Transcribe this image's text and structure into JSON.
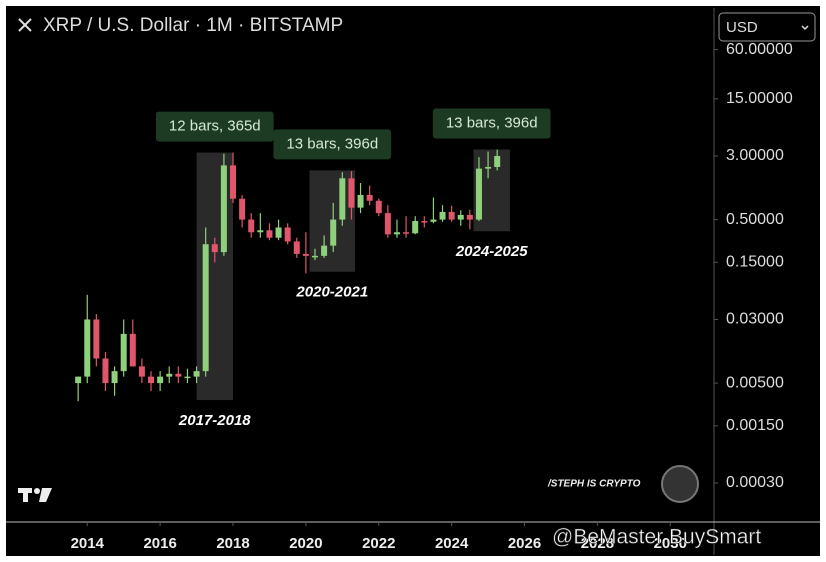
{
  "header": {
    "title": "XRP / U.S. Dollar · 1M · BITSTAMP",
    "currency": "USD"
  },
  "watermarks": {
    "author": "/STEPH IS CRYPTO",
    "overlay": "@BeMaster BuySmart"
  },
  "chart_data": {
    "type": "candlestick",
    "log_scale": true,
    "up_color": "#8fd07c",
    "down_color": "#e0566a",
    "xlim": [
      2011.88,
      2031.2
    ],
    "xticks": [
      2014,
      2016,
      2018,
      2020,
      2022,
      2024,
      2026,
      2028,
      2030
    ],
    "ylim": [
      0.0001,
      183
    ],
    "yticks": [
      {
        "value": 60,
        "label": "60.00000"
      },
      {
        "value": 15,
        "label": "15.00000"
      },
      {
        "value": 3,
        "label": "3.00000"
      },
      {
        "value": 0.5,
        "label": "0.50000"
      },
      {
        "value": 0.15,
        "label": "0.15000"
      },
      {
        "value": 0.03,
        "label": "0.03000"
      },
      {
        "value": 0.005,
        "label": "0.00500"
      },
      {
        "value": 0.0015,
        "label": "0.00150"
      },
      {
        "value": 0.0003,
        "label": "0.00030"
      }
    ],
    "candles": {
      "x": [
        2013.75,
        2014.0,
        2014.25,
        2014.5,
        2014.75,
        2015.0,
        2015.25,
        2015.5,
        2015.75,
        2016.0,
        2016.25,
        2016.5,
        2016.75,
        2017.0,
        2017.25,
        2017.5,
        2017.75,
        2018.0,
        2018.25,
        2018.5,
        2018.75,
        2019.0,
        2019.25,
        2019.5,
        2019.75,
        2020.0,
        2020.25,
        2020.5,
        2020.75,
        2021.0,
        2021.25,
        2021.5,
        2021.75,
        2022.0,
        2022.25,
        2022.5,
        2022.75,
        2023.0,
        2023.25,
        2023.5,
        2023.75,
        2024.0,
        2024.25,
        2024.5,
        2024.75,
        2025.0,
        2025.25
      ],
      "open": [
        0.005,
        0.006,
        0.03,
        0.01,
        0.005,
        0.007,
        0.02,
        0.008,
        0.006,
        0.005,
        0.006,
        0.0065,
        0.006,
        0.006,
        0.007,
        0.25,
        0.2,
        2.3,
        0.9,
        0.5,
        0.35,
        0.37,
        0.3,
        0.4,
        0.27,
        0.19,
        0.18,
        0.18,
        0.24,
        0.5,
        1.6,
        0.7,
        1.0,
        0.85,
        0.6,
        0.33,
        0.35,
        0.34,
        0.48,
        0.47,
        0.5,
        0.62,
        0.5,
        0.57,
        0.5,
        2.1,
        2.2
      ],
      "high": [
        0.006,
        0.06,
        0.035,
        0.012,
        0.008,
        0.03,
        0.03,
        0.01,
        0.007,
        0.007,
        0.008,
        0.008,
        0.0075,
        0.008,
        0.4,
        0.3,
        3.2,
        3.3,
        1.0,
        0.6,
        0.6,
        0.45,
        0.5,
        0.45,
        0.3,
        0.35,
        0.22,
        0.32,
        0.8,
        1.9,
        1.96,
        1.4,
        1.3,
        0.9,
        0.75,
        0.5,
        0.55,
        0.55,
        0.55,
        0.93,
        0.75,
        0.74,
        0.65,
        0.66,
        2.9,
        3.4,
        3.6
      ],
      "low": [
        0.003,
        0.005,
        0.008,
        0.004,
        0.0035,
        0.006,
        0.008,
        0.005,
        0.004,
        0.004,
        0.005,
        0.005,
        0.005,
        0.005,
        0.006,
        0.15,
        0.18,
        0.8,
        0.4,
        0.3,
        0.3,
        0.28,
        0.28,
        0.25,
        0.17,
        0.11,
        0.16,
        0.17,
        0.2,
        0.42,
        0.5,
        0.6,
        0.75,
        0.55,
        0.3,
        0.3,
        0.3,
        0.33,
        0.4,
        0.45,
        0.47,
        0.47,
        0.42,
        0.38,
        0.48,
        1.6,
        2.0
      ],
      "close": [
        0.006,
        0.03,
        0.01,
        0.005,
        0.007,
        0.02,
        0.008,
        0.006,
        0.005,
        0.006,
        0.0065,
        0.006,
        0.006,
        0.007,
        0.25,
        0.2,
        2.3,
        0.9,
        0.5,
        0.35,
        0.37,
        0.3,
        0.4,
        0.27,
        0.19,
        0.18,
        0.18,
        0.24,
        0.5,
        1.6,
        0.7,
        1.0,
        0.85,
        0.6,
        0.33,
        0.35,
        0.34,
        0.48,
        0.47,
        0.5,
        0.62,
        0.5,
        0.57,
        0.5,
        2.1,
        2.2,
        3.0
      ]
    },
    "annotations": [
      {
        "label": "12 bars, 365d",
        "period": "2017-2018",
        "x": [
          2017.0,
          2018.0
        ],
        "y": [
          0.0031,
          3.3
        ]
      },
      {
        "label": "13 bars, 396d",
        "period": "2020-2021",
        "x": [
          2020.1,
          2021.35
        ],
        "y": [
          0.115,
          2.0
        ]
      },
      {
        "label": "13 bars, 396d",
        "period": "2024-2025",
        "x": [
          2024.6,
          2025.6
        ],
        "y": [
          0.36,
          3.6
        ]
      }
    ]
  }
}
